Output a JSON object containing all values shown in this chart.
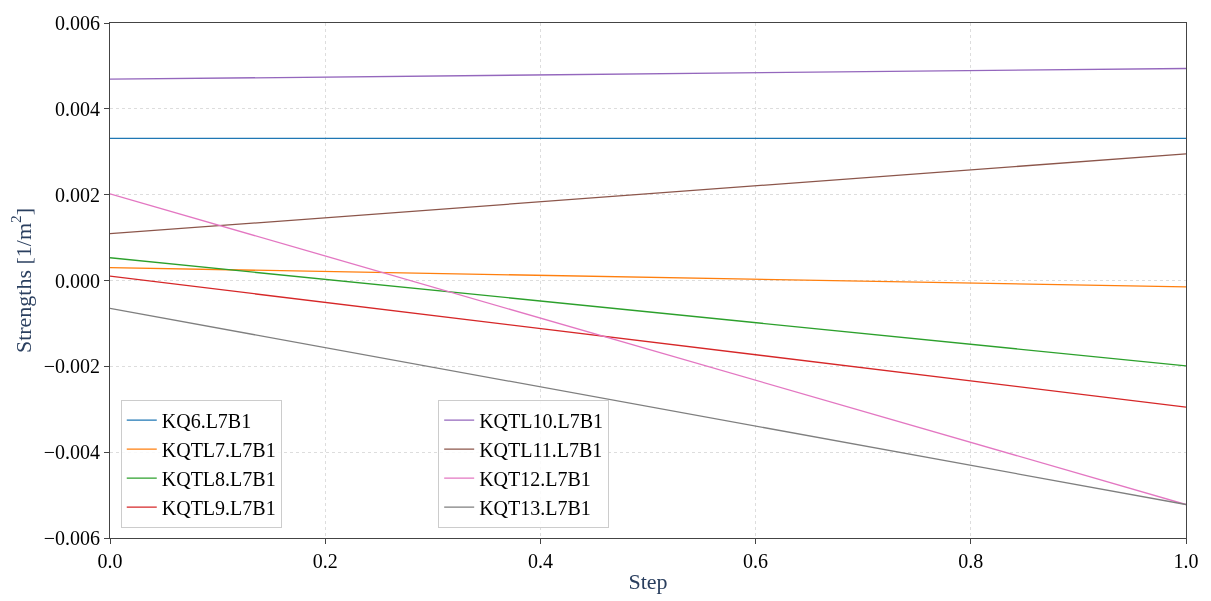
{
  "chart_data": {
    "type": "line",
    "xlabel": "Step",
    "ylabel": "Strengths [1/m$^{2}$]",
    "x": [
      0.0,
      1.0
    ],
    "series": [
      {
        "name": "KQ6.L7B1",
        "color": "#1f77b4",
        "values": [
          0.00331,
          0.00331
        ]
      },
      {
        "name": "KQTL7.L7B1",
        "color": "#ff7f0e",
        "values": [
          0.0003,
          -0.00015
        ]
      },
      {
        "name": "KQTL8.L7B1",
        "color": "#2ca02c",
        "values": [
          0.00053,
          -0.00199
        ]
      },
      {
        "name": "KQTL9.L7B1",
        "color": "#d62728",
        "values": [
          0.0001,
          -0.00295
        ]
      },
      {
        "name": "KQTL10.L7B1",
        "color": "#9467bd",
        "values": [
          0.00469,
          0.00494
        ]
      },
      {
        "name": "KQTL11.L7B1",
        "color": "#8c564b",
        "values": [
          0.00109,
          0.00295
        ]
      },
      {
        "name": "KQT12.L7B1",
        "color": "#e377c2",
        "values": [
          0.00202,
          -0.00522
        ]
      },
      {
        "name": "KQT13.L7B1",
        "color": "#7f7f7f",
        "values": [
          -0.00065,
          -0.00522
        ]
      }
    ],
    "xlim": [
      0.0,
      1.0
    ],
    "xticks": [
      {
        "value": 0.0,
        "label": "0.0"
      },
      0.2,
      0.4,
      0.6,
      0.8,
      {
        "value": 1.0,
        "label": "1.0"
      }
    ],
    "ylim": [
      -0.006,
      0.006
    ],
    "yticks": [
      {
        "value": -0.006,
        "label": "−0.006"
      },
      {
        "value": -0.004,
        "label": "−0.004"
      },
      {
        "value": -0.002,
        "label": "−0.002"
      },
      {
        "value": 0.0,
        "label": "0.000"
      },
      {
        "value": 0.002,
        "label": "0.002"
      },
      {
        "value": 0.004,
        "label": "0.004"
      },
      {
        "value": 0.006,
        "label": "0.006"
      }
    ],
    "grid": true,
    "legend": "bottom left",
    "marker": "none",
    "line_style": "solid"
  }
}
